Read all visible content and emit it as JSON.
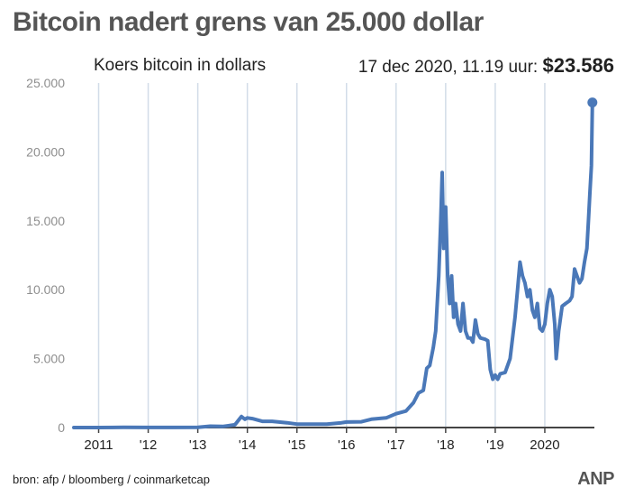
{
  "title": "Bitcoin nadert grens van 25.000 dollar",
  "source": "bron: afp / bloomberg / coinmarketcap",
  "logo": "ANP",
  "colors": {
    "line": "#4a78b8",
    "grid": "#d2dce8",
    "title": "#555555"
  },
  "chart_data": {
    "type": "line",
    "subtitle": "Koers bitcoin in dollars",
    "annotation": {
      "label": "17 dec 2020, 11.19 uur:",
      "value": "$23.586",
      "x": 2020.96,
      "y": 23586
    },
    "ylim": [
      0,
      25000
    ],
    "yticks": [
      0,
      5000,
      10000,
      15000,
      20000,
      25000
    ],
    "ytick_labels": [
      "0",
      "5.000",
      "10.000",
      "15.000",
      "20.000",
      "25.000"
    ],
    "xlim": [
      2010.5,
      2021.0
    ],
    "xticks": [
      2011,
      2012,
      2013,
      2014,
      2015,
      2016,
      2017,
      2018,
      2019,
      2020
    ],
    "xtick_labels": [
      "2011",
      "'12",
      "'13",
      "'14",
      "'15",
      "'16",
      "'17",
      "'18",
      "'19",
      "2020"
    ],
    "grid": "vertical",
    "series": [
      {
        "x": [
          2010.5,
          2011.0,
          2011.5,
          2012.0,
          2012.5,
          2013.0,
          2013.25,
          2013.5,
          2013.75,
          2013.88,
          2013.95,
          2014.0,
          2014.1,
          2014.2,
          2014.3,
          2014.5,
          2014.8,
          2015.0,
          2015.3,
          2015.6,
          2015.9,
          2016.0,
          2016.3,
          2016.5,
          2016.8,
          2017.0,
          2017.2,
          2017.35,
          2017.45,
          2017.55,
          2017.62,
          2017.68,
          2017.75,
          2017.8,
          2017.86,
          2017.9,
          2017.93,
          2017.96,
          2018.0,
          2018.04,
          2018.08,
          2018.12,
          2018.16,
          2018.2,
          2018.25,
          2018.3,
          2018.35,
          2018.4,
          2018.45,
          2018.5,
          2018.55,
          2018.6,
          2018.65,
          2018.7,
          2018.8,
          2018.85,
          2018.9,
          2018.95,
          2019.0,
          2019.05,
          2019.1,
          2019.2,
          2019.3,
          2019.4,
          2019.45,
          2019.5,
          2019.55,
          2019.6,
          2019.65,
          2019.7,
          2019.75,
          2019.8,
          2019.85,
          2019.9,
          2019.95,
          2020.0,
          2020.05,
          2020.1,
          2020.15,
          2020.2,
          2020.23,
          2020.28,
          2020.35,
          2020.42,
          2020.5,
          2020.55,
          2020.6,
          2020.65,
          2020.7,
          2020.75,
          2020.8,
          2020.85,
          2020.88,
          2020.91,
          2020.94,
          2020.96
        ],
        "y": [
          0,
          0,
          10,
          5,
          7,
          15,
          100,
          80,
          200,
          800,
          600,
          700,
          650,
          550,
          450,
          450,
          350,
          250,
          240,
          250,
          350,
          400,
          420,
          600,
          700,
          1000,
          1200,
          1800,
          2500,
          2700,
          4300,
          4500,
          5800,
          7000,
          11000,
          15000,
          18500,
          13000,
          16000,
          11000,
          9000,
          11000,
          8000,
          9000,
          7500,
          7000,
          9000,
          7000,
          6500,
          6500,
          6200,
          7800,
          6800,
          6500,
          6400,
          6300,
          4200,
          3500,
          3800,
          3500,
          3900,
          4000,
          5000,
          8000,
          10000,
          12000,
          11000,
          10500,
          9500,
          10000,
          8500,
          8000,
          9000,
          7200,
          7000,
          7500,
          9000,
          10000,
          9500,
          7500,
          5000,
          7000,
          8800,
          9000,
          9200,
          9500,
          11500,
          11000,
          10500,
          10800,
          12000,
          13000,
          15000,
          17000,
          19000,
          23586
        ]
      }
    ]
  }
}
